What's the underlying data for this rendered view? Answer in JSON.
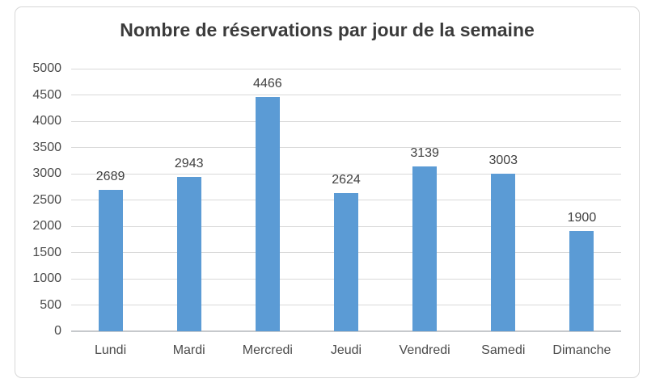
{
  "chart_data": {
    "type": "bar",
    "title": "Nombre de réservations par jour de la semaine",
    "categories": [
      "Lundi",
      "Mardi",
      "Mercredi",
      "Jeudi",
      "Vendredi",
      "Samedi",
      "Dimanche"
    ],
    "values": [
      2689,
      2943,
      4466,
      2624,
      3139,
      3003,
      1900
    ],
    "data_labels": [
      "2689",
      "2943",
      "4466",
      "2624",
      "3139",
      "3003",
      "1900"
    ],
    "xlabel": "",
    "ylabel": "",
    "ylim": [
      0,
      5000
    ],
    "yticks": [
      0,
      500,
      1000,
      1500,
      2000,
      2500,
      3000,
      3500,
      4000,
      4500,
      5000
    ],
    "grid": true,
    "legend": false,
    "bar_color": "#5b9bd5",
    "gridline_color": "#d9d9d9",
    "axis_line_color": "#c6c9cc",
    "title_color": "#3b3b3b",
    "tick_label_color": "#4a4a4a",
    "data_label_color": "#3f3f3f"
  }
}
